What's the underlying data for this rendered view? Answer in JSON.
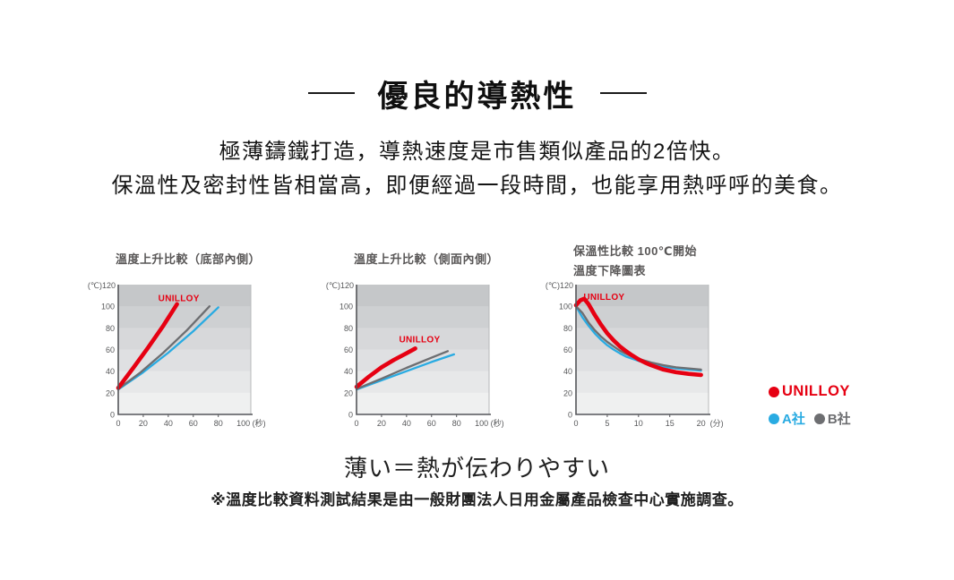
{
  "page": {
    "title": "優良的導熱性",
    "subtitle_line1": "極薄鑄鐵打造，導熱速度是市售類似產品的2倍快。",
    "subtitle_line2": "保溫性及密封性皆相當高，即便經過一段時間，也能享用熱呼呼的美食。",
    "bottom_heading": "薄い＝熱が伝わりやすい",
    "footnote": "※溫度比較資料測試結果是由一般財團法人日用金屬產品檢查中心實施調查。"
  },
  "legend": {
    "items": [
      {
        "label": "UNILLOY",
        "color": "#e60012"
      },
      {
        "label": "A社",
        "color": "#29abe2"
      },
      {
        "label": "B社",
        "color": "#6d6e71"
      }
    ]
  },
  "colors": {
    "accent_red": "#e60012",
    "accent_blue": "#29abe2",
    "accent_gray": "#6d6e71",
    "axis": "#55565a",
    "plot_border": "#b7b8ba",
    "plot_bands": [
      "#c5c7c9",
      "#ced0d2",
      "#d7d8da",
      "#dfe0e2",
      "#e7e8e9",
      "#eff0f0"
    ]
  },
  "chart_data": [
    {
      "type": "line",
      "title_lines": [
        "溫度上升比較（底部內側）"
      ],
      "y_axis_top_label": "(℃)120",
      "ylabel": "℃",
      "xlabel": "秒",
      "ylim": [
        0,
        120
      ],
      "y_ticks": [
        100,
        80,
        60,
        40,
        20,
        0
      ],
      "x_ticks": [
        0,
        20,
        40,
        60,
        80,
        100
      ],
      "x_unit": "(秒)",
      "xlim": [
        0,
        106
      ],
      "grid": "horizontal-bands",
      "legend_position": "outside-right",
      "series": [
        {
          "name": "A社",
          "color": "#29abe2",
          "width": 2.3,
          "points": [
            [
              0,
              23
            ],
            [
              20,
              39
            ],
            [
              40,
              57
            ],
            [
              60,
              77
            ],
            [
              80,
              99
            ]
          ]
        },
        {
          "name": "B社",
          "color": "#6d6e71",
          "width": 2.3,
          "points": [
            [
              0,
              23.5
            ],
            [
              18,
              39
            ],
            [
              36,
              57
            ],
            [
              55,
              78
            ],
            [
              73,
              100
            ]
          ]
        },
        {
          "name": "UNILLOY",
          "color": "#e60012",
          "width": 4.6,
          "points": [
            [
              0,
              24.5
            ],
            [
              12,
              43
            ],
            [
              24,
              62
            ],
            [
              36,
              82
            ],
            [
              47,
              102
            ]
          ]
        }
      ],
      "inline_label": {
        "text": "UNILLOY",
        "color": "#e60012",
        "x": 32,
        "y": 104.5
      }
    },
    {
      "type": "line",
      "title_lines": [
        "溫度上升比較（側面內側）"
      ],
      "y_axis_top_label": "(℃)120",
      "ylabel": "℃",
      "xlabel": "秒",
      "ylim": [
        0,
        120
      ],
      "y_ticks": [
        100,
        80,
        60,
        40,
        20,
        0
      ],
      "x_ticks": [
        0,
        20,
        40,
        60,
        80,
        100
      ],
      "x_unit": "(秒)",
      "xlim": [
        0,
        106
      ],
      "grid": "horizontal-bands",
      "legend_position": "outside-right",
      "series": [
        {
          "name": "A社",
          "color": "#29abe2",
          "width": 2.3,
          "points": [
            [
              0,
              23
            ],
            [
              20,
              31.5
            ],
            [
              40,
              40
            ],
            [
              60,
              48.5
            ],
            [
              78,
              55.5
            ]
          ]
        },
        {
          "name": "B社",
          "color": "#6d6e71",
          "width": 2.3,
          "points": [
            [
              0,
              23.5
            ],
            [
              20,
              33
            ],
            [
              40,
              43
            ],
            [
              60,
              52.5
            ],
            [
              73,
              58.5
            ]
          ]
        },
        {
          "name": "UNILLOY",
          "color": "#e60012",
          "width": 4.6,
          "points": [
            [
              0,
              25.5
            ],
            [
              10,
              35
            ],
            [
              20,
              43.5
            ],
            [
              30,
              50.5
            ],
            [
              40,
              56.5
            ],
            [
              47,
              61
            ]
          ]
        }
      ],
      "inline_label": {
        "text": "UNILLOY",
        "color": "#e60012",
        "x": 34,
        "y": 66.5
      }
    },
    {
      "type": "line",
      "title_lines": [
        "保溫性比較 100℃開始",
        "溫度下降圖表"
      ],
      "y_axis_top_label": "(℃)120",
      "ylabel": "℃",
      "xlabel": "分",
      "ylim": [
        0,
        120
      ],
      "y_ticks": [
        100,
        80,
        60,
        40,
        20,
        0
      ],
      "x_ticks": [
        0,
        5,
        10,
        15,
        20
      ],
      "x_unit": "(分)",
      "xlim": [
        0,
        21.2
      ],
      "grid": "horizontal-bands",
      "legend_position": "outside-right",
      "series": [
        {
          "name": "A社",
          "color": "#29abe2",
          "width": 2.3,
          "points": [
            [
              0,
              100
            ],
            [
              1,
              90
            ],
            [
              2,
              82
            ],
            [
              3,
              75
            ],
            [
              4,
              69
            ],
            [
              5,
              64
            ],
            [
              6,
              60
            ],
            [
              7,
              56.5
            ],
            [
              8,
              53.5
            ],
            [
              9,
              51.5
            ],
            [
              10,
              49.5
            ],
            [
              12,
              46.5
            ],
            [
              14,
              44
            ],
            [
              16,
              42.5
            ],
            [
              18,
              41.5
            ],
            [
              20,
              40.5
            ]
          ]
        },
        {
          "name": "B社",
          "color": "#6d6e71",
          "width": 2.3,
          "points": [
            [
              0,
              100
            ],
            [
              1,
              94
            ],
            [
              2,
              85
            ],
            [
              3,
              78
            ],
            [
              4,
              72
            ],
            [
              5,
              67
            ],
            [
              6,
              63
            ],
            [
              7,
              59
            ],
            [
              8,
              56
            ],
            [
              9,
              53.5
            ],
            [
              10,
              51.5
            ],
            [
              12,
              48
            ],
            [
              14,
              45.5
            ],
            [
              16,
              43.5
            ],
            [
              18,
              42.5
            ],
            [
              20,
              41.5
            ]
          ]
        },
        {
          "name": "UNILLOY",
          "color": "#e60012",
          "width": 4.6,
          "points": [
            [
              0,
              101
            ],
            [
              0.7,
              105.5
            ],
            [
              1.3,
              107
            ],
            [
              2,
              102
            ],
            [
              3,
              92
            ],
            [
              4,
              83
            ],
            [
              5,
              75
            ],
            [
              6,
              68.5
            ],
            [
              7,
              63
            ],
            [
              8,
              58.5
            ],
            [
              9,
              54.5
            ],
            [
              10,
              51
            ],
            [
              11,
              48
            ],
            [
              12,
              45.5
            ],
            [
              14,
              41.5
            ],
            [
              16,
              39
            ],
            [
              18,
              37.5
            ],
            [
              20,
              36.5
            ]
          ]
        }
      ],
      "inline_label": {
        "text": "UNILLOY",
        "color": "#e60012",
        "x": 1.2,
        "y": 106
      }
    }
  ]
}
